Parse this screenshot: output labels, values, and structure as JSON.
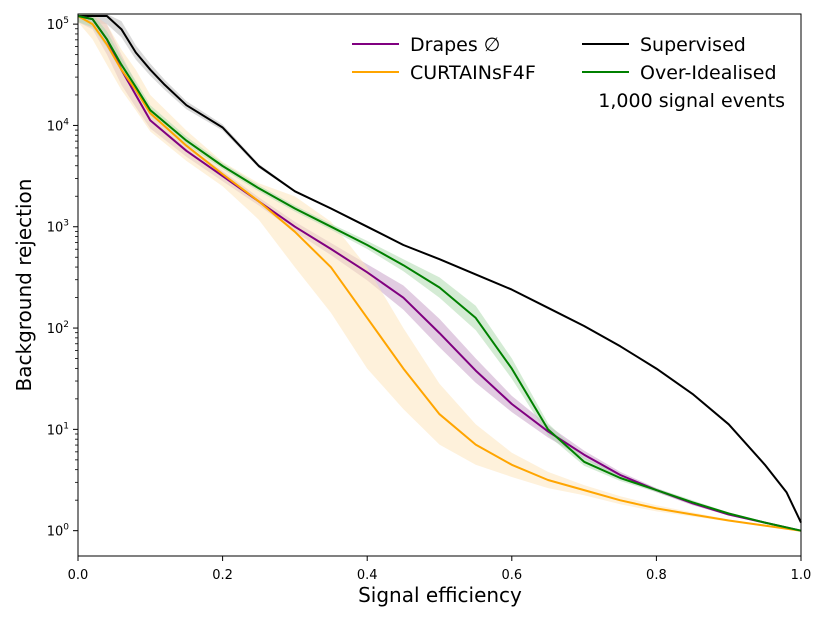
{
  "chart_data": {
    "type": "line",
    "title": "",
    "xlabel": "Signal efficiency",
    "ylabel": "Background rejection",
    "xlim": [
      0.0,
      1.0
    ],
    "ylim_log10": [
      -0.25,
      5.1
    ],
    "yscale": "log",
    "grid": false,
    "legend_placement": "top-right",
    "x_ticks": [
      {
        "value": 0.0,
        "label": "0.0"
      },
      {
        "value": 0.2,
        "label": "0.2"
      },
      {
        "value": 0.4,
        "label": "0.4"
      },
      {
        "value": 0.6,
        "label": "0.6"
      },
      {
        "value": 0.8,
        "label": "0.8"
      },
      {
        "value": 1.0,
        "label": "1.0"
      }
    ],
    "y_ticks": [
      {
        "log10": 0,
        "base": "10",
        "exp": "0"
      },
      {
        "log10": 1,
        "base": "10",
        "exp": "1"
      },
      {
        "log10": 2,
        "base": "10",
        "exp": "2"
      },
      {
        "log10": 3,
        "base": "10",
        "exp": "3"
      },
      {
        "log10": 4,
        "base": "10",
        "exp": "4"
      },
      {
        "log10": 5,
        "base": "10",
        "exp": "5"
      }
    ],
    "annotation": "1,000 signal events",
    "series": [
      {
        "name": "Supervised",
        "color": "#000000",
        "band_color": "#bbbbbb",
        "x": [
          0.0,
          0.04,
          0.06,
          0.08,
          0.1,
          0.12,
          0.15,
          0.2,
          0.25,
          0.3,
          0.35,
          0.4,
          0.45,
          0.5,
          0.55,
          0.6,
          0.65,
          0.7,
          0.75,
          0.8,
          0.85,
          0.9,
          0.95,
          0.98,
          1.0
        ],
        "log10y": [
          5.08,
          5.08,
          4.95,
          4.72,
          4.55,
          4.4,
          4.2,
          3.98,
          3.6,
          3.35,
          3.18,
          3.0,
          2.82,
          2.68,
          2.53,
          2.38,
          2.2,
          2.02,
          1.82,
          1.6,
          1.35,
          1.05,
          0.65,
          0.38,
          0.08
        ],
        "band": [
          0.06,
          0.08,
          0.08,
          0.07,
          0.06,
          0.05,
          0.04,
          0.03,
          0.02,
          0.01,
          0.01,
          0.01,
          0.01,
          0.0,
          0.0,
          0.0,
          0.0,
          0.0,
          0.0,
          0.0,
          0.0,
          0.0,
          0.0,
          0.0,
          0.0
        ]
      },
      {
        "name": "Drapes ∅",
        "color": "#800080",
        "band_color": "#c8a2c8",
        "x": [
          0.0,
          0.02,
          0.04,
          0.06,
          0.08,
          0.1,
          0.15,
          0.2,
          0.25,
          0.3,
          0.35,
          0.4,
          0.45,
          0.5,
          0.55,
          0.6,
          0.65,
          0.7,
          0.75,
          0.8,
          0.85,
          0.9,
          0.95,
          1.0
        ],
        "log10y": [
          5.08,
          5.05,
          4.85,
          4.55,
          4.3,
          4.05,
          3.75,
          3.5,
          3.25,
          3.0,
          2.78,
          2.55,
          2.3,
          1.95,
          1.58,
          1.25,
          0.98,
          0.75,
          0.55,
          0.4,
          0.27,
          0.16,
          0.08,
          0.0
        ],
        "band": [
          0.06,
          0.1,
          0.15,
          0.15,
          0.12,
          0.08,
          0.06,
          0.05,
          0.04,
          0.05,
          0.06,
          0.08,
          0.12,
          0.14,
          0.12,
          0.08,
          0.06,
          0.04,
          0.03,
          0.02,
          0.02,
          0.01,
          0.01,
          0.0
        ]
      },
      {
        "name": "CURTAINsF4F",
        "color": "#ffa500",
        "band_color": "#fde6be",
        "x": [
          0.0,
          0.02,
          0.04,
          0.06,
          0.08,
          0.1,
          0.15,
          0.2,
          0.25,
          0.3,
          0.35,
          0.4,
          0.45,
          0.5,
          0.55,
          0.6,
          0.65,
          0.7,
          0.75,
          0.8,
          0.85,
          0.9,
          0.95,
          1.0
        ],
        "log10y": [
          5.08,
          5.0,
          4.8,
          4.55,
          4.35,
          4.12,
          3.8,
          3.52,
          3.25,
          2.95,
          2.6,
          2.1,
          1.6,
          1.15,
          0.85,
          0.65,
          0.5,
          0.4,
          0.3,
          0.22,
          0.16,
          0.1,
          0.05,
          0.0
        ],
        "band": [
          0.06,
          0.15,
          0.2,
          0.2,
          0.2,
          0.18,
          0.15,
          0.12,
          0.18,
          0.35,
          0.45,
          0.5,
          0.4,
          0.3,
          0.2,
          0.12,
          0.08,
          0.05,
          0.04,
          0.03,
          0.02,
          0.01,
          0.01,
          0.0
        ]
      },
      {
        "name": "Over-Idealised",
        "color": "#008000",
        "band_color": "#b0dab0",
        "x": [
          0.0,
          0.02,
          0.04,
          0.06,
          0.08,
          0.1,
          0.15,
          0.2,
          0.25,
          0.3,
          0.35,
          0.4,
          0.45,
          0.5,
          0.55,
          0.6,
          0.65,
          0.7,
          0.75,
          0.8,
          0.85,
          0.9,
          0.95,
          1.0
        ],
        "log10y": [
          5.08,
          5.05,
          4.85,
          4.6,
          4.38,
          4.15,
          3.85,
          3.6,
          3.38,
          3.18,
          3.0,
          2.82,
          2.62,
          2.4,
          2.1,
          1.6,
          1.0,
          0.68,
          0.52,
          0.4,
          0.28,
          0.17,
          0.08,
          0.0
        ],
        "band": [
          0.06,
          0.08,
          0.08,
          0.07,
          0.06,
          0.05,
          0.04,
          0.03,
          0.03,
          0.03,
          0.03,
          0.04,
          0.06,
          0.1,
          0.12,
          0.1,
          0.06,
          0.04,
          0.03,
          0.02,
          0.02,
          0.01,
          0.01,
          0.0
        ]
      }
    ],
    "legend_order": [
      1,
      2,
      0,
      3
    ]
  }
}
